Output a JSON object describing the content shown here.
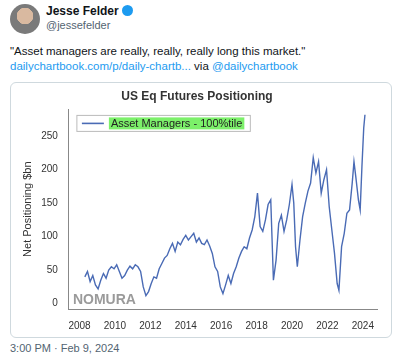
{
  "post": {
    "author": "Jesse Felder",
    "handle": "@jessefelder",
    "text": "\"Asset managers are really, really, really long this market.\"",
    "link": "dailychartbook.com/p/daily-chartb...",
    "via": "via",
    "via_handle": "@dailychartbook",
    "timestamp": "3:00 PM · Feb 9, 2024"
  },
  "chart_data": {
    "type": "line",
    "title": "US Eq Futures Positioning",
    "y_label": "Net Positioning $bn",
    "annotations": [
      "NOMURA"
    ],
    "x": [
      2008.3,
      2008.45,
      2008.6,
      2008.75,
      2008.9,
      2009.05,
      2009.2,
      2009.35,
      2009.5,
      2009.65,
      2009.8,
      2009.95,
      2010.1,
      2010.25,
      2010.4,
      2010.55,
      2010.7,
      2010.85,
      2011.0,
      2011.15,
      2011.3,
      2011.45,
      2011.6,
      2011.75,
      2011.9,
      2012.05,
      2012.2,
      2012.35,
      2012.5,
      2012.65,
      2012.8,
      2012.95,
      2013.1,
      2013.25,
      2013.4,
      2013.55,
      2013.7,
      2013.85,
      2014.0,
      2014.15,
      2014.3,
      2014.45,
      2014.6,
      2014.75,
      2014.9,
      2015.05,
      2015.2,
      2015.35,
      2015.5,
      2015.65,
      2015.8,
      2015.95,
      2016.1,
      2016.25,
      2016.4,
      2016.55,
      2016.7,
      2016.85,
      2017.0,
      2017.15,
      2017.3,
      2017.45,
      2017.6,
      2017.75,
      2017.9,
      2018.05,
      2018.2,
      2018.35,
      2018.5,
      2018.65,
      2018.8,
      2018.95,
      2019.1,
      2019.25,
      2019.4,
      2019.55,
      2019.7,
      2019.85,
      2020.0,
      2020.1,
      2020.2,
      2020.3,
      2020.45,
      2020.6,
      2020.75,
      2020.9,
      2021.05,
      2021.2,
      2021.35,
      2021.5,
      2021.65,
      2021.8,
      2021.95,
      2022.1,
      2022.25,
      2022.4,
      2022.55,
      2022.65,
      2022.8,
      2022.95,
      2023.1,
      2023.25,
      2023.4,
      2023.5,
      2023.6,
      2023.75,
      2023.85,
      2023.95,
      2024.05,
      2024.12
    ],
    "series": [
      {
        "name": "Asset Managers - 100%tile",
        "color": "#4a6bb5",
        "values": [
          40,
          48,
          33,
          42,
          28,
          22,
          35,
          45,
          38,
          50,
          55,
          52,
          58,
          48,
          38,
          42,
          50,
          56,
          52,
          58,
          55,
          48,
          25,
          12,
          18,
          30,
          40,
          38,
          52,
          60,
          68,
          72,
          82,
          90,
          78,
          92,
          88,
          96,
          102,
          95,
          100,
          105,
          92,
          98,
          90,
          88,
          95,
          86,
          75,
          55,
          48,
          25,
          15,
          28,
          42,
          30,
          45,
          55,
          68,
          78,
          85,
          82,
          98,
          110,
          130,
          165,
          115,
          108,
          125,
          148,
          155,
          35,
          65,
          120,
          132,
          108,
          125,
          148,
          178,
          150,
          85,
          55,
          95,
          130,
          150,
          168,
          180,
          218,
          195,
          212,
          165,
          185,
          200,
          145,
          110,
          75,
          30,
          20,
          85,
          105,
          135,
          140,
          180,
          212,
          190,
          155,
          140,
          205,
          262,
          282
        ]
      }
    ],
    "xlim": [
      2007.4,
      2024.8
    ],
    "xticks": [
      2008,
      2010,
      2012,
      2014,
      2016,
      2018,
      2020,
      2022,
      2024
    ],
    "ylim": [
      -8,
      290
    ],
    "yticks": [
      0,
      50,
      100,
      150,
      200,
      250
    ],
    "grid": false,
    "legend": "upper left"
  }
}
